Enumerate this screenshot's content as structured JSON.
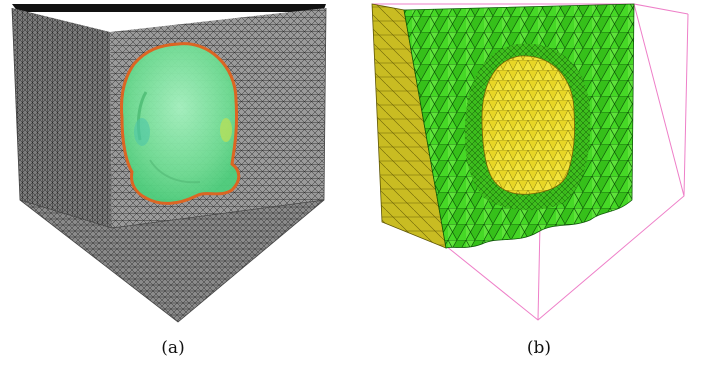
{
  "figure": {
    "panels": [
      {
        "id": "a",
        "label": "(a)"
      },
      {
        "id": "b",
        "label": "(b)"
      }
    ],
    "colors": {
      "mesh_gray": "#6b6b6b",
      "mesh_dark": "#2a2a2a",
      "head_translucent_green": "#7fe7a2",
      "head_outline_orange": "#e0641e",
      "tet_green": "#3cd21e",
      "tet_green_dark": "#1f8a10",
      "tet_yellow": "#f0e43a",
      "tet_yellow_side": "#c8bb1e",
      "bbox_pink": "#ee7fc8"
    }
  }
}
